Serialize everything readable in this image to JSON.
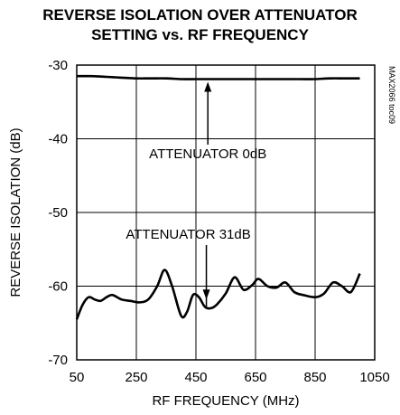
{
  "chart_data": {
    "type": "line",
    "title_lines": [
      "REVERSE ISOLATION OVER ATTENUATOR",
      "SETTING vs. RF FREQUENCY"
    ],
    "xlabel": "RF FREQUENCY (MHz)",
    "ylabel": "REVERSE ISOLATION (dB)",
    "xlim": [
      50,
      1050
    ],
    "ylim": [
      -70,
      -30
    ],
    "xticks": [
      50,
      250,
      450,
      650,
      850,
      1050
    ],
    "yticks": [
      -30,
      -40,
      -50,
      -60,
      -70
    ],
    "grid": true,
    "watermark": "MAX2066 toc09",
    "series": [
      {
        "name": "ATTENUATOR 0dB",
        "x": [
          50,
          100,
          150,
          200,
          250,
          300,
          350,
          400,
          450,
          500,
          550,
          600,
          650,
          700,
          750,
          800,
          850,
          900,
          950,
          1000
        ],
        "y": [
          -31.5,
          -31.5,
          -31.6,
          -31.7,
          -31.8,
          -31.8,
          -31.8,
          -31.9,
          -31.9,
          -31.9,
          -31.9,
          -31.9,
          -31.9,
          -31.9,
          -31.9,
          -31.9,
          -31.9,
          -31.8,
          -31.8,
          -31.8
        ]
      },
      {
        "name": "ATTENUATOR 31dB",
        "x": [
          50,
          70,
          90,
          110,
          130,
          150,
          170,
          200,
          230,
          260,
          290,
          320,
          345,
          370,
          400,
          420,
          440,
          460,
          480,
          500,
          520,
          550,
          580,
          610,
          640,
          660,
          690,
          720,
          750,
          780,
          810,
          850,
          880,
          910,
          940,
          970,
          1000
        ],
        "y": [
          -64.5,
          -62.5,
          -61.5,
          -61.8,
          -62,
          -61.5,
          -61.2,
          -61.8,
          -62,
          -62.2,
          -61.8,
          -60,
          -57.8,
          -60,
          -64,
          -63.5,
          -61.2,
          -61.5,
          -62.8,
          -63,
          -62.5,
          -61,
          -58.8,
          -60.5,
          -59.8,
          -59,
          -60,
          -60.2,
          -59.5,
          -60.8,
          -61.2,
          -61.5,
          -61,
          -59.5,
          -60,
          -60.8,
          -58.3
        ]
      }
    ],
    "annotations": [
      {
        "text": "ATTENUATOR 0dB",
        "arrow_to": [
          490,
          -31.9
        ]
      },
      {
        "text": "ATTENUATOR 31dB",
        "arrow_to": [
          485,
          -62.3
        ]
      }
    ]
  }
}
